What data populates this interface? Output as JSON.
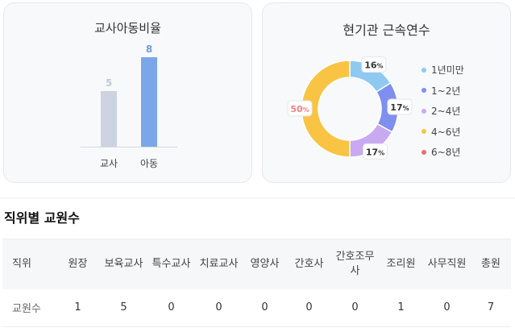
{
  "chart_data": [
    {
      "type": "bar",
      "title": "교사아동비율",
      "categories": [
        "교사",
        "아동"
      ],
      "values": [
        5,
        8
      ],
      "colors": [
        "#cdd3e0",
        "#7ba7e8"
      ],
      "ylim": [
        0,
        8.5
      ]
    },
    {
      "type": "pie",
      "title": "현기관 근속연수",
      "categories": [
        "1년미만",
        "1~2년",
        "2~4년",
        "4~6년",
        "6~8년"
      ],
      "values": [
        16,
        17,
        17,
        50,
        0
      ],
      "labels": [
        "16",
        "17",
        "17",
        "50",
        ""
      ],
      "unit": "%",
      "colors": [
        "#8ec9f2",
        "#7f8ff0",
        "#c8a9f2",
        "#f9c443",
        "#f26b6b"
      ],
      "hole": 0.65
    }
  ],
  "table": {
    "title": "직위별 교원수",
    "headers": [
      "직위",
      "원장",
      "보육교사",
      "특수교사",
      "치료교사",
      "영양사",
      "간호사",
      "간호조무사",
      "조리원",
      "사무직원",
      "총원"
    ],
    "row_label": "교원수",
    "values": [
      "1",
      "5",
      "0",
      "0",
      "0",
      "0",
      "0",
      "1",
      "0",
      "7"
    ]
  }
}
